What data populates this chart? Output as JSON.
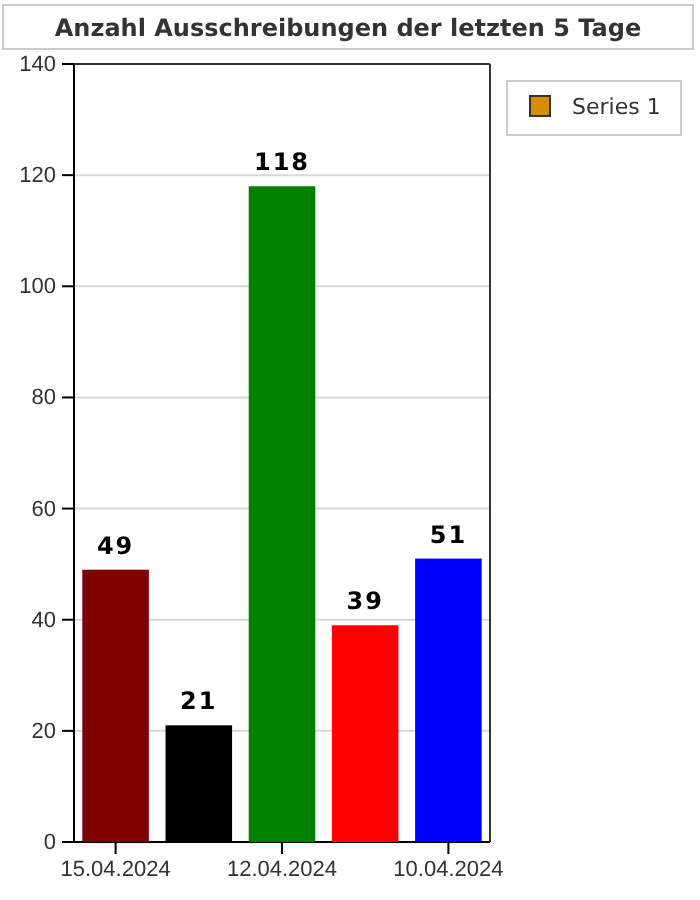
{
  "chart_data": {
    "type": "bar",
    "title": "Anzahl Ausschreibungen der letzten 5 Tage",
    "categories": [
      "15.04.2024",
      null,
      "12.04.2024",
      null,
      "10.04.2024"
    ],
    "series": [
      {
        "name": "Series 1",
        "color": "#d98c00",
        "colors": [
          "#800000",
          "#000000",
          "#008000",
          "#ff0000",
          "#0000ff"
        ],
        "values": [
          49,
          21,
          118,
          39,
          51
        ]
      }
    ],
    "ylim": [
      0,
      140
    ],
    "yticks": [
      0,
      20,
      40,
      60,
      80,
      100,
      120,
      140
    ],
    "grid": "y",
    "legend": "top right",
    "data_labels": true
  }
}
